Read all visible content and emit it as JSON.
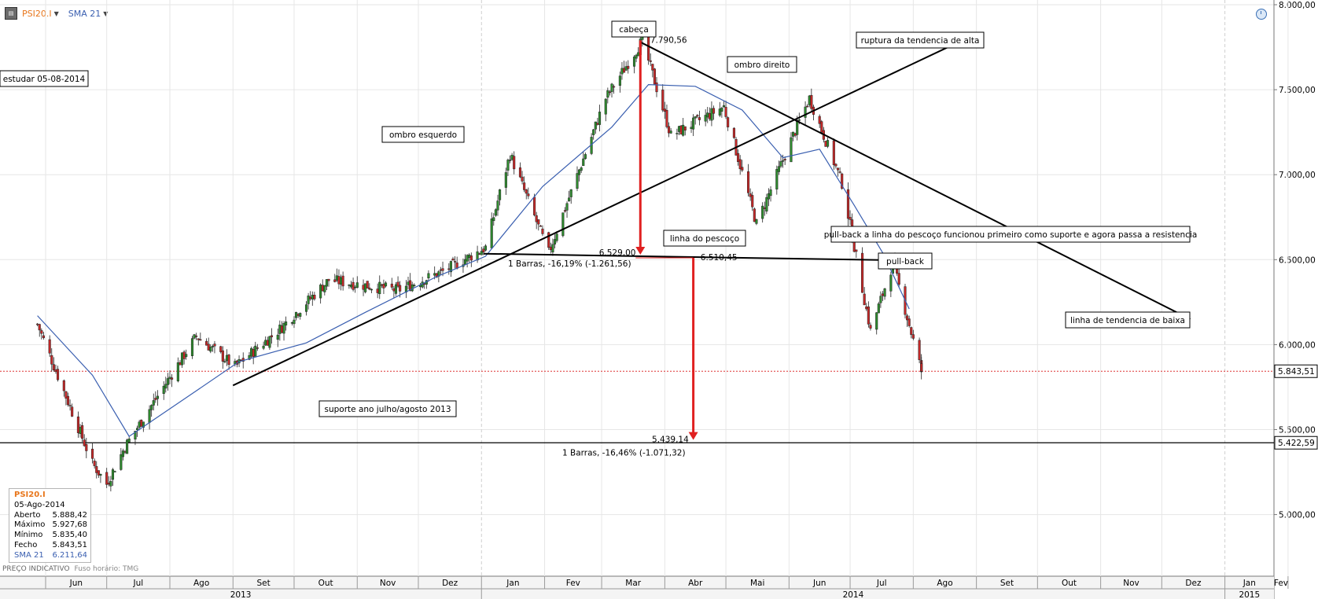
{
  "toolbar": {
    "symbol_label": "PSI20.I",
    "indicator_label": "SMA 21",
    "symbol_color": "#e8761b",
    "indicator_color": "#3a5fb0",
    "chart_icon": "chart-settings-icon",
    "clock_icon": "clock-icon"
  },
  "info_panel": {
    "symbol": "PSI20.I",
    "date": "05-Ago-2014",
    "rows": [
      {
        "label": "Aberto",
        "value": "5.888,42"
      },
      {
        "label": "Máximo",
        "value": "5.927,68"
      },
      {
        "label": "Mínimo",
        "value": "5.835,40"
      },
      {
        "label": "Fecho",
        "value": "5.843,51"
      }
    ],
    "sma_label": "SMA 21",
    "sma_value": "6.211,64"
  },
  "footnote": {
    "price_note": "PREÇO INDICATIVO",
    "timezone": "Fuso horário: TMG"
  },
  "chart_data": {
    "type": "candlestick",
    "instrument": "PSI20.I",
    "indicator": "SMA 21",
    "y_axis": {
      "ticks": [
        "8.000,00",
        "7.500,00",
        "7.000,00",
        "6.500,00",
        "6.000,00",
        "5.500,00",
        "5.000,00"
      ],
      "tick_values": [
        8000,
        7500,
        7000,
        6500,
        6000,
        5500,
        5000
      ],
      "range": [
        4600,
        8000
      ],
      "current_price_label": "5.843,51",
      "current_price": 5843.51,
      "target_level_label": "5.422,59",
      "target_level": 5422.59
    },
    "x_axis": {
      "months": [
        "Jun",
        "Jul",
        "Ago",
        "Set",
        "Out",
        "Nov",
        "Dez",
        "Jan",
        "Fev",
        "Mar",
        "Abr",
        "Mai",
        "Jun",
        "Jul",
        "Ago",
        "Set",
        "Out",
        "Nov",
        "Dez",
        "Jan",
        "Fev"
      ],
      "years": [
        "2013",
        "2014",
        "2015"
      ]
    },
    "ohlc_sample_points": [
      {
        "date": "2013-05-28",
        "close": 6120
      },
      {
        "date": "2013-06-24",
        "close": 5300
      },
      {
        "date": "2013-07-01",
        "close": 5180
      },
      {
        "date": "2013-07-10",
        "close": 5400
      },
      {
        "date": "2013-08-14",
        "close": 6050
      },
      {
        "date": "2013-09-02",
        "close": 5870
      },
      {
        "date": "2013-09-23",
        "close": 6080
      },
      {
        "date": "2013-10-18",
        "close": 6380
      },
      {
        "date": "2013-11-21",
        "close": 6320
      },
      {
        "date": "2013-12-13",
        "close": 6430
      },
      {
        "date": "2014-01-03",
        "close": 6570
      },
      {
        "date": "2014-01-15",
        "close": 7120
      },
      {
        "date": "2014-02-03",
        "close": 6540
      },
      {
        "date": "2014-03-03",
        "close": 7450
      },
      {
        "date": "2014-03-21",
        "close": 7790.56
      },
      {
        "date": "2014-04-04",
        "close": 7230
      },
      {
        "date": "2014-04-30",
        "close": 7400
      },
      {
        "date": "2014-05-16",
        "close": 6710
      },
      {
        "date": "2014-06-03",
        "close": 7230
      },
      {
        "date": "2014-06-11",
        "close": 7450
      },
      {
        "date": "2014-06-27",
        "close": 6950
      },
      {
        "date": "2014-07-11",
        "close": 6080
      },
      {
        "date": "2014-07-22",
        "close": 6480
      },
      {
        "date": "2014-08-05",
        "close": 5843.51
      }
    ],
    "sma21_sample_points": [
      {
        "date": "2013-05-28",
        "value": 6170
      },
      {
        "date": "2013-06-24",
        "value": 5820
      },
      {
        "date": "2013-07-12",
        "value": 5460
      },
      {
        "date": "2013-08-13",
        "value": 5720
      },
      {
        "date": "2013-09-04",
        "value": 5900
      },
      {
        "date": "2013-10-07",
        "value": 6010
      },
      {
        "date": "2013-11-05",
        "value": 6190
      },
      {
        "date": "2013-12-10",
        "value": 6400
      },
      {
        "date": "2014-01-03",
        "value": 6520
      },
      {
        "date": "2014-01-31",
        "value": 6930
      },
      {
        "date": "2014-03-06",
        "value": 7280
      },
      {
        "date": "2014-03-24",
        "value": 7530
      },
      {
        "date": "2014-04-16",
        "value": 7520
      },
      {
        "date": "2014-05-09",
        "value": 7380
      },
      {
        "date": "2014-05-29",
        "value": 7100
      },
      {
        "date": "2014-06-16",
        "value": 7150
      },
      {
        "date": "2014-07-03",
        "value": 6820
      },
      {
        "date": "2014-07-17",
        "value": 6540
      },
      {
        "date": "2014-07-30",
        "value": 6210
      }
    ],
    "annotations": {
      "boxes": [
        "estudar 05-08-2014",
        "ombro esquerdo",
        "cabeça",
        "ombro direito",
        "ruptura da tendencia de alta",
        "linha do pescoço",
        "pull-back a linha do pescoço funcionou primeiro como  suporte e agora passa a resistencia",
        "pull-back",
        "linha de tendencia de baixa",
        "suporte ano julho/agosto 2013"
      ],
      "value_labels": [
        "7.790,56",
        "6.529,00",
        "6.510,45",
        "5.439,14"
      ],
      "measure_labels": [
        "1 Barras, -16,19% (-1.261,56)",
        "1 Barras, -16,46% (-1.071,32)"
      ]
    },
    "head": 7790.56,
    "neckline_left": 6529.0,
    "neckline_right": 6510.45,
    "target": 5439.14,
    "grid": true,
    "legend": "top-left"
  }
}
